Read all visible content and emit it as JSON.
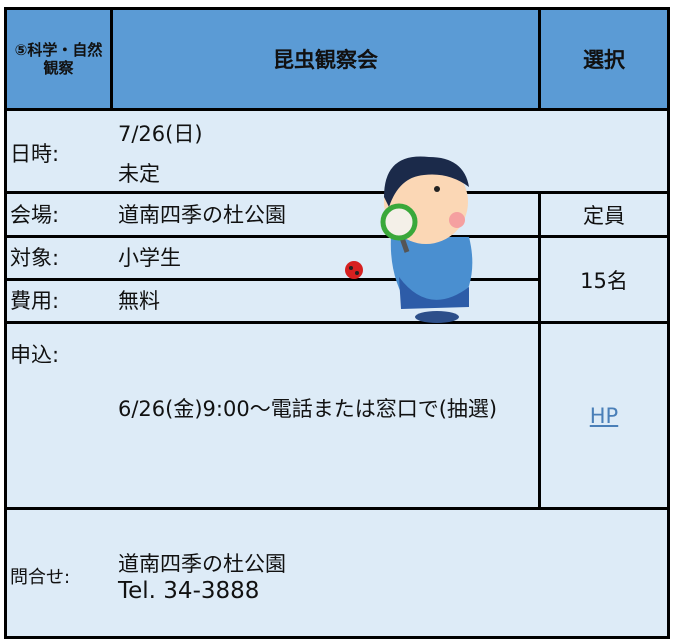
{
  "header": {
    "category": "⑤科学・自然観察",
    "title": "昆虫観察会",
    "select": "選択"
  },
  "rows": [
    {
      "label": "日時:",
      "lines": [
        "7/26(日)",
        "未定"
      ]
    },
    {
      "label": "会場:",
      "lines": [
        "道南四季の杜公園"
      ]
    },
    {
      "label": "対象:",
      "lines": [
        "小学生"
      ]
    },
    {
      "label": "費用:",
      "lines": [
        "無料"
      ]
    },
    {
      "label": "申込:",
      "lines": [
        "6/26(金)9:00～電話または窓口で(抽選)"
      ]
    },
    {
      "label": "問合せ:",
      "lines": [
        "道南四季の杜公園",
        "Tel. 34-3888"
      ]
    }
  ],
  "capacity": {
    "label": "定員",
    "value": "15名"
  },
  "link": "HP"
}
